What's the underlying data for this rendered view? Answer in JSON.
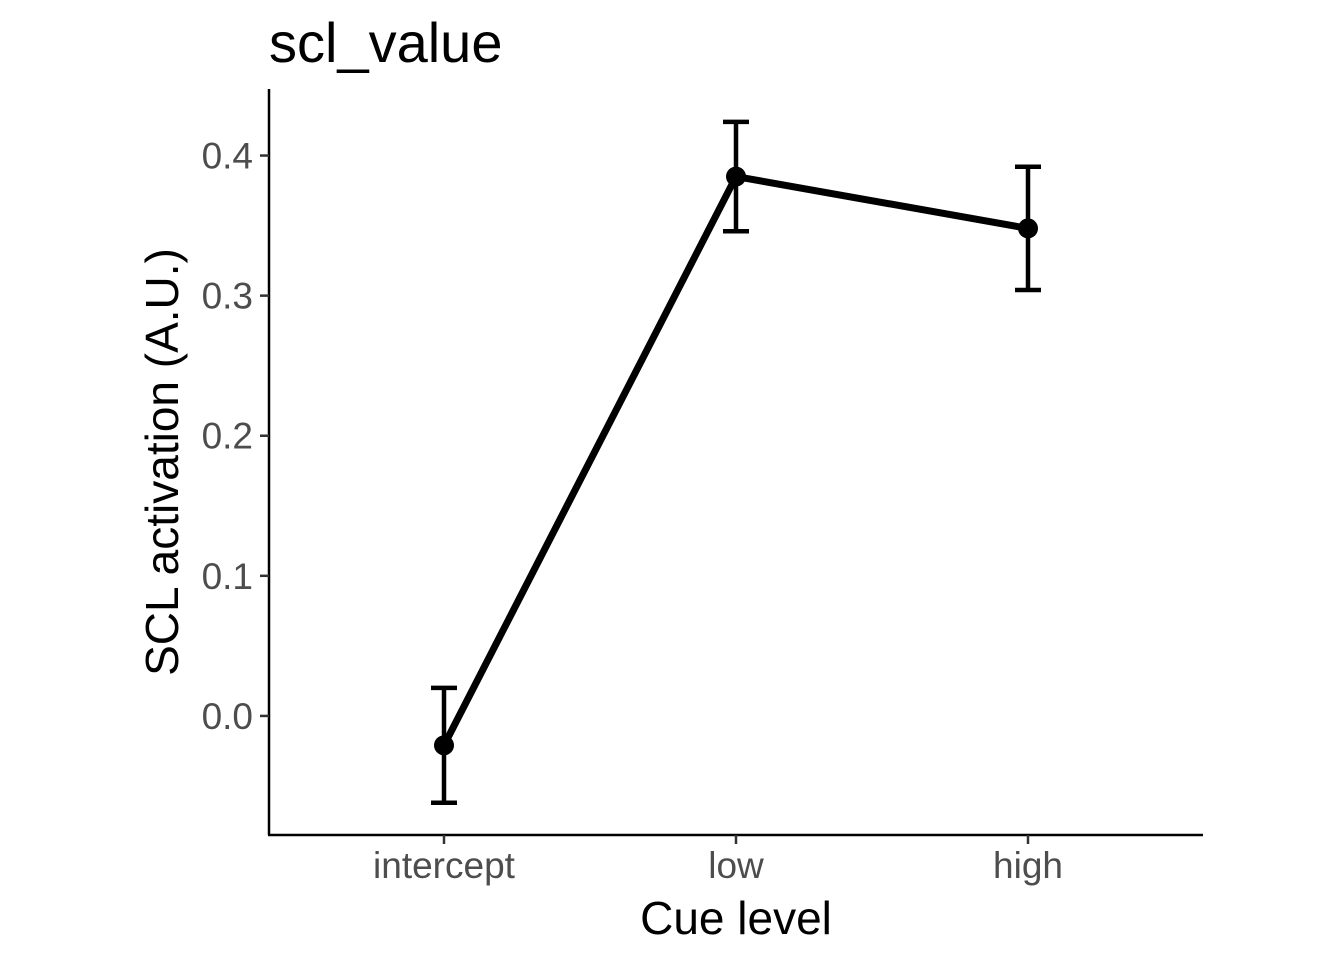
{
  "chart_data": {
    "type": "line",
    "title": "scl_value",
    "xlabel": "Cue level",
    "ylabel": "SCL activation (A.U.)",
    "categories": [
      "intercept",
      "low",
      "high"
    ],
    "series": [
      {
        "values": [
          -0.021,
          0.385,
          0.348
        ],
        "error_lower": [
          -0.062,
          0.346,
          0.304
        ],
        "error_upper": [
          0.02,
          0.424,
          0.392
        ]
      }
    ],
    "ylim": [
      -0.085,
      0.4475
    ],
    "yticks": [
      0.0,
      0.1,
      0.2,
      0.3,
      0.4
    ],
    "ytick_labels": [
      "0.0",
      "0.1",
      "0.2",
      "0.3",
      "0.4"
    ],
    "grid": false,
    "colors": {
      "series": "#000000",
      "tick_text": "#4d4d4d",
      "axis": "#000000"
    }
  }
}
